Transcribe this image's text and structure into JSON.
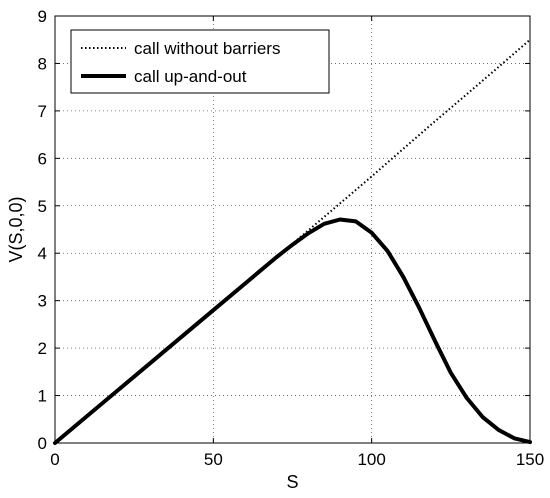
{
  "chart_data": {
    "type": "line",
    "xlabel": "S",
    "ylabel": "V(S,0,0)",
    "xlim": [
      0,
      150
    ],
    "ylim": [
      0,
      9
    ],
    "xticks": [
      0,
      50,
      100,
      150
    ],
    "yticks": [
      0,
      1,
      2,
      3,
      4,
      5,
      6,
      7,
      8,
      9
    ],
    "grid": true,
    "grid_style": "dotted",
    "legend_position": "top-left",
    "series": [
      {
        "name": "call without barriers",
        "style": "dotted",
        "color": "#000000",
        "x": [
          0,
          10,
          20,
          30,
          40,
          50,
          60,
          70,
          80,
          90,
          100,
          110,
          120,
          130,
          140,
          150
        ],
        "y": [
          0,
          0.56,
          1.12,
          1.68,
          2.24,
          2.8,
          3.36,
          3.92,
          4.48,
          5.05,
          5.62,
          6.2,
          6.78,
          7.35,
          7.92,
          8.5
        ]
      },
      {
        "name": "call up-and-out",
        "style": "solid",
        "color": "#000000",
        "x": [
          0,
          10,
          20,
          30,
          40,
          50,
          60,
          70,
          75,
          80,
          85,
          90,
          95,
          100,
          105,
          110,
          115,
          120,
          125,
          130,
          135,
          140,
          145,
          150
        ],
        "y": [
          0,
          0.56,
          1.12,
          1.68,
          2.24,
          2.8,
          3.36,
          3.92,
          4.18,
          4.42,
          4.62,
          4.71,
          4.67,
          4.43,
          4.05,
          3.5,
          2.85,
          2.15,
          1.48,
          0.95,
          0.55,
          0.28,
          0.1,
          0.02
        ]
      }
    ]
  }
}
